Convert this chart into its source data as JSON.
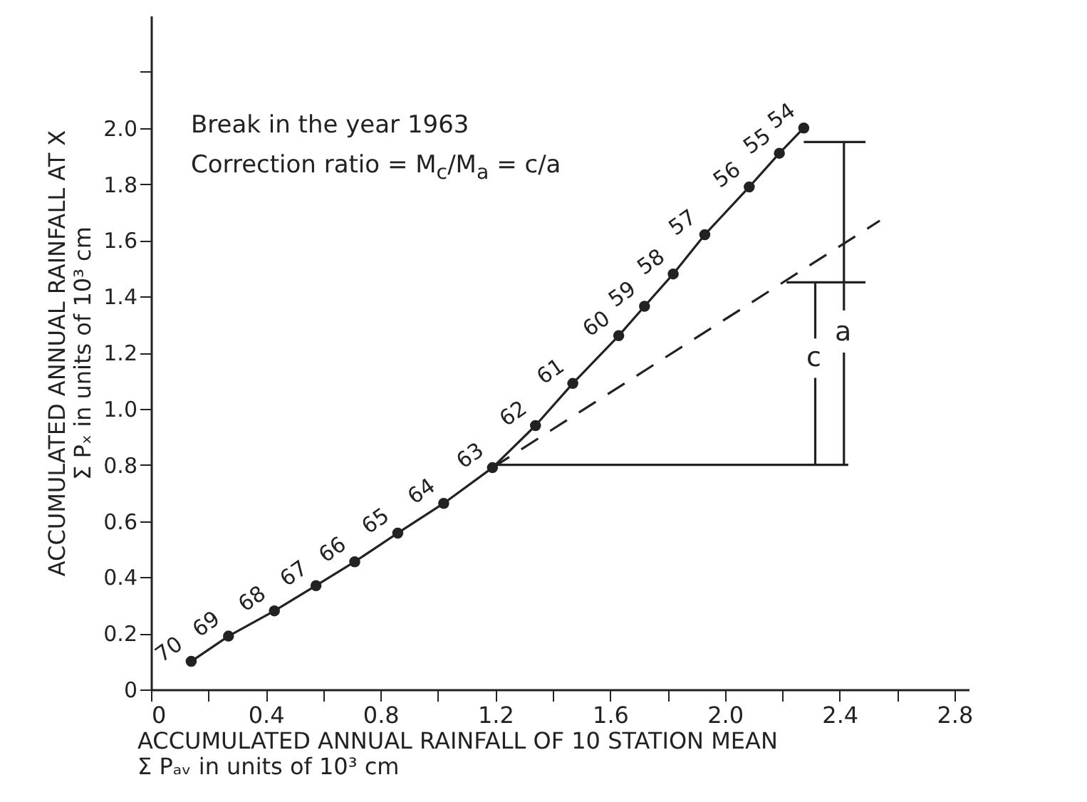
{
  "chart_data": {
    "type": "line",
    "xlabel": "ACCUMULATED ANNUAL RAINFALL OF 10 STATION MEAN\nΣ Pₐᵥ in units of 10³ cm",
    "ylabel": "ACCUMULATED ANNUAL RAINFALL AT X\nΣ Pₓ in units of 10³ cm",
    "annotations": [
      "Break in the year 1963",
      "Correction ratio = M$_{c}$/M$_{a}$ = c/a",
      "a",
      "c",
      {
        "text": "70",
        "x": 0.14,
        "y": 0.1
      },
      {
        "text": "69",
        "x": 0.27,
        "y": 0.19
      },
      {
        "text": "68",
        "x": 0.43,
        "y": 0.28
      },
      {
        "text": "67",
        "x": 0.575,
        "y": 0.37
      },
      {
        "text": "66",
        "x": 0.71,
        "y": 0.455
      },
      {
        "text": "65",
        "x": 0.86,
        "y": 0.557
      },
      {
        "text": "64",
        "x": 1.02,
        "y": 0.663
      },
      {
        "text": "63",
        "x": 1.19,
        "y": 0.79
      },
      {
        "text": "62",
        "x": 1.34,
        "y": 0.94
      },
      {
        "text": "61",
        "x": 1.47,
        "y": 1.09
      },
      {
        "text": "60",
        "x": 1.63,
        "y": 1.26
      },
      {
        "text": "59",
        "x": 1.72,
        "y": 1.365
      },
      {
        "text": "58",
        "x": 1.82,
        "y": 1.48
      },
      {
        "text": "57",
        "x": 1.93,
        "y": 1.62
      },
      {
        "text": "56",
        "x": 2.085,
        "y": 1.79
      },
      {
        "text": "55",
        "x": 2.19,
        "y": 1.91
      },
      {
        "text": "54",
        "x": 2.275,
        "y": 2.0
      }
    ],
    "xlim": [
      0,
      2.85
    ],
    "ylim": [
      0,
      2.4
    ],
    "xticks": [
      0,
      {
        "value": 0.2,
        "label": null
      },
      0.4,
      {
        "value": 0.6,
        "label": null
      },
      0.8,
      {
        "value": 1.0,
        "label": null
      },
      1.2,
      {
        "value": 1.4,
        "label": null
      },
      1.6,
      {
        "value": 1.8,
        "label": null
      },
      {
        "value": 2.0,
        "label": "2.0"
      },
      {
        "value": 2.2,
        "label": null
      },
      2.4,
      {
        "value": 2.6,
        "label": null
      },
      2.8
    ],
    "yticks": [
      0,
      0.2,
      0.4,
      0.6,
      0.8,
      {
        "value": 1.0,
        "label": "1.0"
      },
      1.2,
      1.4,
      1.6,
      1.8,
      {
        "value": 2.0,
        "label": "2.0"
      },
      {
        "value": 2.2,
        "label": null
      }
    ],
    "grid": false,
    "series": [
      {
        "color": "#222222",
        "marker": "circle",
        "x": [
          0.14,
          0.27,
          0.43,
          0.575,
          0.71,
          0.86,
          1.02,
          1.19,
          1.34,
          1.47,
          1.63,
          1.72,
          1.82,
          1.93,
          2.085,
          2.19,
          2.275
        ],
        "values": [
          0.1,
          0.19,
          0.28,
          0.37,
          0.455,
          0.557,
          0.663,
          0.79,
          0.94,
          1.09,
          1.26,
          1.365,
          1.48,
          1.62,
          1.79,
          1.91,
          2.0
        ]
      },
      {
        "color": "#222222",
        "line_style": "dashed",
        "x": [
          1.19,
          2.54
        ],
        "values": [
          0.79,
          1.67
        ]
      },
      {
        "color": "#222222",
        "x": [
          1.19,
          2.43
        ],
        "values": [
          0.8,
          0.8
        ]
      },
      {
        "color": "#222222",
        "x": [
          2.275,
          2.49
        ],
        "values": [
          1.95,
          1.95
        ]
      },
      {
        "color": "#222222",
        "x": [
          2.215,
          2.49
        ],
        "values": [
          1.45,
          1.45
        ]
      },
      {
        "color": "#222222",
        "x": [
          2.415,
          2.415
        ],
        "values": [
          0.8,
          1.2
        ]
      },
      {
        "color": "#222222",
        "x": [
          2.415,
          2.415
        ],
        "values": [
          1.35,
          1.95
        ]
      },
      {
        "color": "#222222",
        "x": [
          2.315,
          2.315
        ],
        "values": [
          0.8,
          1.11
        ]
      },
      {
        "color": "#222222",
        "x": [
          2.315,
          2.315
        ],
        "values": [
          1.25,
          1.45
        ]
      }
    ]
  }
}
